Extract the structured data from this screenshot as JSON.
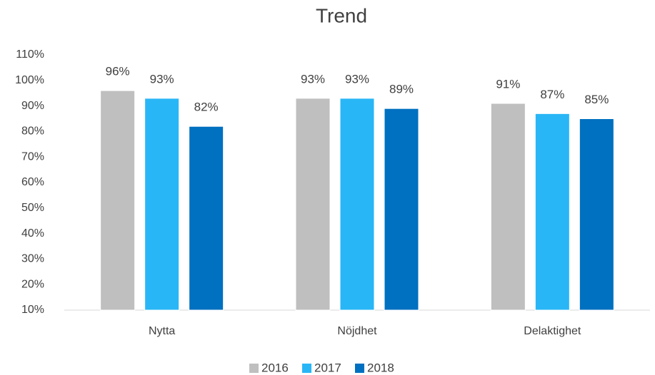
{
  "chart_data": {
    "type": "bar",
    "title": "Trend",
    "categories": [
      "Nytta",
      "Nöjdhet",
      "Delaktighet"
    ],
    "series": [
      {
        "name": "2016",
        "color": "#bfbfbf",
        "values": [
          96,
          93,
          91
        ],
        "value_labels": [
          "96%",
          "93%",
          "91%"
        ]
      },
      {
        "name": "2017",
        "color": "#29b6f6",
        "values": [
          93,
          93,
          87
        ],
        "value_labels": [
          "93%",
          "93%",
          "87%"
        ]
      },
      {
        "name": "2018",
        "color": "#0070c0",
        "values": [
          82,
          89,
          85
        ],
        "value_labels": [
          "82%",
          "89%",
          "85%"
        ]
      }
    ],
    "ylim": [
      10,
      110
    ],
    "yticks": [
      {
        "value": 10,
        "label": "10%"
      },
      {
        "value": 20,
        "label": "20%"
      },
      {
        "value": 30,
        "label": "30%"
      },
      {
        "value": 40,
        "label": "40%"
      },
      {
        "value": 50,
        "label": "50%"
      },
      {
        "value": 60,
        "label": "60%"
      },
      {
        "value": 70,
        "label": "70%"
      },
      {
        "value": 80,
        "label": "80%"
      },
      {
        "value": 90,
        "label": "90%"
      },
      {
        "value": 100,
        "label": "100%"
      },
      {
        "value": 110,
        "label": "110%"
      }
    ],
    "grid": false,
    "legend": "bottom"
  }
}
